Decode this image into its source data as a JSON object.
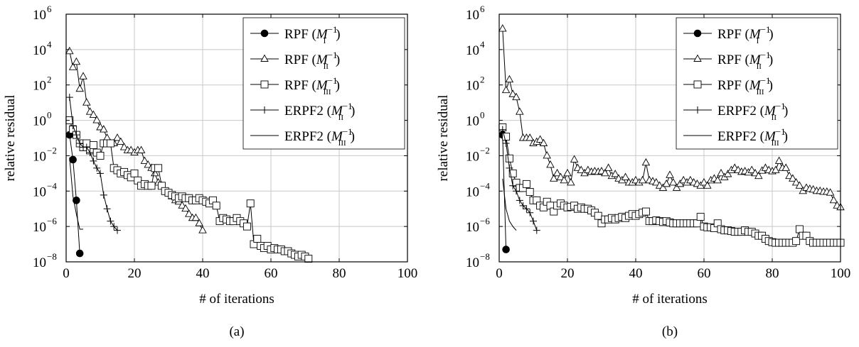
{
  "chart_data": [
    {
      "type": "line",
      "panel_label": "(a)",
      "xlabel": "# of iterations",
      "ylabel": "relative residual",
      "xlim": [
        0,
        100
      ],
      "ylim": [
        1e-08,
        1000000.0
      ],
      "y_scale": "log",
      "x_ticks": [
        "0",
        "20",
        "40",
        "60",
        "80",
        "100"
      ],
      "y_tick_exponents": [
        "-8",
        "-6",
        "-4",
        "-2",
        "0",
        "2",
        "4",
        "6"
      ],
      "grid": true,
      "legend_position": "top-right",
      "series": [
        {
          "name": "RPF (M_I^{-1})",
          "marker": "filled-circle",
          "x": [
            1,
            2,
            3,
            4
          ],
          "y": [
            0.15,
            0.006,
            3e-05,
            3e-08
          ]
        },
        {
          "name": "RPF (M_II^{-1})",
          "marker": "triangle",
          "x": [
            1,
            2,
            3,
            4,
            5,
            6,
            7,
            8,
            9,
            10,
            11,
            12,
            13,
            14,
            15,
            16,
            17,
            18,
            19,
            20,
            21,
            22,
            23,
            24,
            25,
            26,
            27,
            28,
            29,
            30,
            31,
            32,
            33,
            34,
            35,
            36,
            37,
            38,
            39,
            40
          ],
          "y": [
            8000,
            1000,
            2000,
            60,
            300,
            10,
            3,
            2,
            1,
            0.4,
            0.3,
            0.1,
            0.05,
            0.05,
            0.1,
            0.06,
            0.03,
            0.02,
            0.02,
            0.015,
            0.02,
            0.02,
            0.005,
            0.003,
            0.002,
            0.001,
            0.0003,
            0.0002,
            0.0001,
            8e-05,
            5e-05,
            3e-05,
            2.5e-05,
            1.5e-05,
            1e-05,
            5e-06,
            3e-06,
            3e-06,
            1.5e-06,
            6e-07
          ]
        },
        {
          "name": "RPF (M_III^{-1})",
          "marker": "square",
          "x": [
            1,
            2,
            3,
            4,
            5,
            6,
            7,
            8,
            9,
            10,
            11,
            12,
            13,
            14,
            15,
            16,
            17,
            18,
            19,
            20,
            21,
            22,
            23,
            24,
            25,
            26,
            27,
            28,
            29,
            30,
            31,
            32,
            33,
            34,
            35,
            36,
            37,
            38,
            39,
            40,
            41,
            42,
            43,
            44,
            45,
            46,
            47,
            48,
            49,
            50,
            51,
            52,
            53,
            54,
            55,
            56,
            57,
            58,
            59,
            60,
            61,
            62,
            63,
            64,
            65,
            66,
            67,
            68,
            69,
            70,
            71
          ],
          "y": [
            1,
            0.3,
            0.15,
            0.05,
            0.03,
            0.05,
            0.02,
            0.04,
            0.015,
            0.01,
            0.05,
            0.05,
            0.05,
            0.002,
            0.0015,
            0.001,
            0.0012,
            0.0008,
            0.0006,
            0.001,
            0.0004,
            0.0002,
            0.00025,
            0.0002,
            0.0002,
            0.002,
            0.002,
            0.0002,
            0.0001,
            8e-05,
            6e-05,
            5e-05,
            4e-05,
            5e-05,
            4e-05,
            4e-05,
            3e-05,
            3e-05,
            4e-05,
            3e-05,
            2.5e-05,
            2e-05,
            3e-05,
            1.5e-05,
            2e-06,
            3e-06,
            2.5e-06,
            2e-06,
            2e-06,
            3e-06,
            2e-06,
            1.5e-06,
            1e-06,
            2e-05,
            1e-07,
            2e-07,
            8e-08,
            6e-08,
            8e-08,
            5e-08,
            6e-08,
            5e-08,
            5e-08,
            4e-08,
            4e-08,
            3e-08,
            2.5e-08,
            2e-08,
            2.5e-08,
            2e-08,
            1.5e-08
          ]
        },
        {
          "name": "ERPF2 (M_II^{-1})",
          "marker": "plus",
          "x": [
            1,
            2,
            3,
            4,
            5,
            6,
            7,
            8,
            9,
            10,
            11,
            12,
            13,
            14,
            15
          ],
          "y": [
            20,
            0.5,
            0.15,
            0.05,
            0.03,
            0.03,
            0.015,
            0.005,
            0.002,
            0.001,
            6e-05,
            1e-05,
            2e-06,
            1e-06,
            6e-07
          ]
        },
        {
          "name": "ERPF2 (M_III^{-1})",
          "marker": "none",
          "x": [
            1,
            2,
            3,
            4,
            5
          ],
          "y": [
            0.008,
            5e-05,
            5e-06,
            7e-07,
            7e-07
          ]
        }
      ]
    },
    {
      "type": "line",
      "panel_label": "(b)",
      "xlabel": "# of iterations",
      "ylabel": "relative residual",
      "xlim": [
        0,
        100
      ],
      "ylim": [
        1e-08,
        1000000.0
      ],
      "y_scale": "log",
      "x_ticks": [
        "0",
        "20",
        "40",
        "60",
        "80",
        "100"
      ],
      "y_tick_exponents": [
        "-8",
        "-6",
        "-4",
        "-2",
        "0",
        "2",
        "4",
        "6"
      ],
      "grid": true,
      "legend_position": "top-right",
      "series": [
        {
          "name": "RPF (M_I^{-1})",
          "marker": "filled-circle",
          "x": [
            1,
            2
          ],
          "y": [
            0.15,
            5e-08
          ]
        },
        {
          "name": "RPF (M_II^{-1})",
          "marker": "triangle",
          "x": [
            1,
            2,
            3,
            4,
            5,
            6,
            7,
            8,
            9,
            10,
            11,
            12,
            13,
            14,
            15,
            16,
            17,
            18,
            19,
            20,
            21,
            22,
            23,
            24,
            25,
            26,
            27,
            28,
            29,
            30,
            31,
            32,
            33,
            34,
            35,
            36,
            37,
            38,
            39,
            40,
            41,
            42,
            43,
            44,
            45,
            46,
            47,
            48,
            49,
            50,
            51,
            52,
            53,
            54,
            55,
            56,
            57,
            58,
            59,
            60,
            61,
            62,
            63,
            64,
            65,
            66,
            67,
            68,
            69,
            70,
            71,
            72,
            73,
            74,
            75,
            76,
            77,
            78,
            79,
            80,
            81,
            82,
            83,
            84,
            85,
            86,
            87,
            88,
            89,
            90,
            91,
            92,
            93,
            94,
            95,
            96,
            97,
            98,
            99,
            100
          ],
          "y": [
            150000,
            50,
            200,
            30,
            20,
            3,
            0.1,
            0.1,
            0.1,
            0.05,
            0.06,
            0.08,
            0.05,
            0.01,
            0.003,
            0.0005,
            0.001,
            0.0006,
            0.0004,
            0.001,
            0.0003,
            0.006,
            0.002,
            0.0015,
            0.001,
            0.0015,
            0.0012,
            0.0013,
            0.0012,
            0.0013,
            0.001,
            0.002,
            0.0007,
            0.0009,
            0.0005,
            0.0004,
            0.0006,
            0.0003,
            0.0003,
            0.0004,
            0.0003,
            0.0004,
            0.004,
            0.0004,
            0.00035,
            0.0003,
            0.0002,
            0.00015,
            0.00025,
            0.0008,
            0.0003,
            0.00015,
            0.00025,
            0.0004,
            0.0003,
            0.0004,
            0.0003,
            0.00025,
            0.0002,
            0.0003,
            0.0002,
            0.0004,
            0.0005,
            0.0004,
            0.001,
            0.0006,
            0.0009,
            0.0015,
            0.002,
            0.0015,
            0.0012,
            0.0013,
            0.0011,
            0.0015,
            0.001,
            0.0007,
            0.0014,
            0.002,
            0.0015,
            0.0013,
            0.0015,
            0.005,
            0.002,
            0.002,
            0.0007,
            0.0005,
            0.0003,
            0.0002,
            0.0001,
            0.00015,
            0.00013,
            0.00012,
            0.0001,
            0.0001,
            9e-05,
            9e-05,
            8e-05,
            3e-05,
            1.5e-05,
            1.2e-05
          ]
        },
        {
          "name": "RPF (M_III^{-1})",
          "marker": "square",
          "x": [
            1,
            2,
            3,
            4,
            5,
            6,
            7,
            8,
            9,
            10,
            11,
            12,
            13,
            14,
            15,
            16,
            17,
            18,
            19,
            20,
            21,
            22,
            23,
            24,
            25,
            26,
            27,
            28,
            29,
            30,
            31,
            32,
            33,
            34,
            35,
            36,
            37,
            38,
            39,
            40,
            41,
            42,
            43,
            44,
            45,
            46,
            47,
            48,
            49,
            50,
            51,
            52,
            53,
            54,
            55,
            56,
            57,
            58,
            59,
            60,
            61,
            62,
            63,
            64,
            65,
            66,
            67,
            68,
            69,
            70,
            71,
            72,
            73,
            74,
            75,
            76,
            77,
            78,
            79,
            80,
            81,
            82,
            83,
            84,
            85,
            86,
            87,
            88,
            89,
            90,
            91,
            92,
            93,
            94,
            95,
            96,
            97,
            98,
            99,
            100
          ],
          "y": [
            0.4,
            0.12,
            0.007,
            0.001,
            0.0003,
            0.00015,
            0.00015,
            0.00025,
            9e-05,
            3e-05,
            3e-05,
            1.5e-05,
            1.2e-05,
            2.5e-05,
            1.5e-05,
            7e-06,
            1.5e-05,
            2e-05,
            1.5e-05,
            1.2e-05,
            1.3e-05,
            1.5e-05,
            1e-05,
            1.2e-05,
            1e-05,
            1e-05,
            8e-06,
            6e-06,
            4e-06,
            1.5e-06,
            2.5e-06,
            2.5e-06,
            3e-06,
            2.5e-06,
            3e-06,
            3.5e-06,
            3e-06,
            4e-06,
            5e-06,
            4e-06,
            5e-06,
            6e-06,
            7e-06,
            2e-06,
            2e-06,
            2.2e-06,
            2e-06,
            1.8e-06,
            2e-06,
            1.7e-06,
            1.5e-06,
            1.5e-06,
            1.5e-06,
            1.5e-06,
            1.5e-06,
            1.5e-06,
            1.5e-06,
            1.5e-06,
            3.5e-06,
            1e-06,
            9e-07,
            9e-07,
            8e-07,
            1.5e-06,
            7e-07,
            6e-07,
            6e-07,
            5.5e-07,
            5e-07,
            5e-07,
            5e-07,
            6e-07,
            5e-07,
            5e-07,
            4e-07,
            3e-07,
            3e-07,
            2e-07,
            1.5e-07,
            1.3e-07,
            1.2e-07,
            1.2e-07,
            1.2e-07,
            1.2e-07,
            1.2e-07,
            1.2e-07,
            1.5e-07,
            7e-07,
            3e-07,
            3e-07,
            1.5e-07,
            1.2e-07,
            1.2e-07,
            1.2e-07,
            1.2e-07,
            1.2e-07,
            1.2e-07,
            1.2e-07,
            1.2e-07,
            1.2e-07
          ]
        },
        {
          "name": "ERPF2 (M_II^{-1})",
          "marker": "plus",
          "x": [
            1,
            2,
            3,
            4,
            5,
            6,
            7,
            8,
            9,
            10,
            11
          ],
          "y": [
            0.3,
            0.05,
            0.002,
            0.0002,
            0.0001,
            3e-05,
            1.5e-05,
            1e-05,
            6e-06,
            2e-06,
            6e-07
          ]
        },
        {
          "name": "ERPF2 (M_III^{-1})",
          "marker": "none",
          "x": [
            1,
            2,
            3,
            4,
            5
          ],
          "y": [
            0.0005,
            1e-05,
            2e-06,
            1e-06,
            6e-07
          ]
        }
      ]
    }
  ],
  "legend_display": [
    {
      "base": "RPF",
      "sub": "I"
    },
    {
      "base": "RPF",
      "sub": "II"
    },
    {
      "base": "RPF",
      "sub": "III"
    },
    {
      "base": "ERPF2",
      "sub": "II"
    },
    {
      "base": "ERPF2",
      "sub": "III"
    }
  ]
}
